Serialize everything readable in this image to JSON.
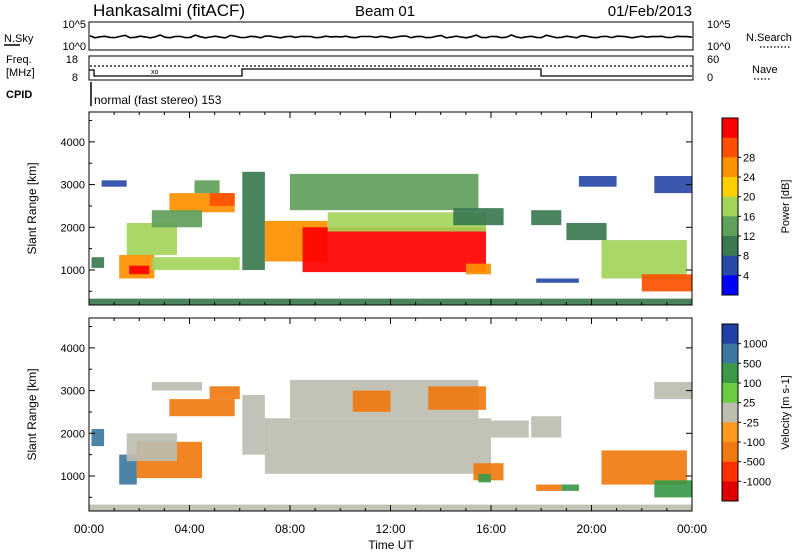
{
  "header": {
    "station": "Hankasalmi (fitACF)",
    "beam": "Beam 01",
    "date": "01/Feb/2013"
  },
  "noise_panel": {
    "left_label": "N.Sky",
    "right_label": "N.Search",
    "left_ticks": [
      "10^5",
      "10^0"
    ],
    "right_ticks": [
      "10^5",
      "10^0"
    ]
  },
  "freq_panel": {
    "left_label_1": "Freq.",
    "left_label_2": "[MHz]",
    "left_ticks": [
      "18",
      "8"
    ],
    "right_label": "Nave",
    "right_ticks": [
      "60",
      "0"
    ],
    "cpid_label": "CPID"
  },
  "cpid_panel": {
    "text": "normal (fast stereo) 153"
  },
  "chart_data": [
    {
      "type": "heatmap",
      "title": "Power",
      "ylabel": "Slant Range [km]",
      "xlabel": "Time UT",
      "x_tick_labels": [
        "00:00",
        "04:00",
        "08:00",
        "12:00",
        "16:00",
        "20:00",
        "00:00"
      ],
      "xlim_hours": [
        0,
        24
      ],
      "y_ticks": [
        1000,
        2000,
        3000,
        4000
      ],
      "ylim": [
        180,
        4700
      ],
      "colorbar": {
        "label": "Power [dB]",
        "ticks": [
          "4",
          "8",
          "12",
          "16",
          "20",
          "24",
          "28"
        ],
        "range": [
          0,
          30
        ]
      },
      "regions": [
        {
          "t0": 0.1,
          "t1": 0.6,
          "r0": 1050,
          "r1": 1300,
          "v": 9
        },
        {
          "t0": 1.2,
          "t1": 2.6,
          "r0": 800,
          "r1": 1350,
          "v": 22
        },
        {
          "t0": 1.6,
          "t1": 2.4,
          "r0": 900,
          "r1": 1100,
          "v": 27
        },
        {
          "t0": 1.5,
          "t1": 3.5,
          "r0": 1350,
          "r1": 2100,
          "v": 15
        },
        {
          "t0": 2.5,
          "t1": 6.0,
          "r0": 1000,
          "r1": 1300,
          "v": 14
        },
        {
          "t0": 3.2,
          "t1": 5.8,
          "r0": 2350,
          "r1": 2800,
          "v": 20
        },
        {
          "t0": 4.8,
          "t1": 5.8,
          "r0": 2500,
          "r1": 2800,
          "v": 25
        },
        {
          "t0": 2.5,
          "t1": 4.5,
          "r0": 2000,
          "r1": 2400,
          "v": 10
        },
        {
          "t0": 4.2,
          "t1": 5.2,
          "r0": 2800,
          "r1": 3100,
          "v": 13
        },
        {
          "t0": 0.5,
          "t1": 1.5,
          "r0": 2950,
          "r1": 3100,
          "v": 6
        },
        {
          "t0": 6.1,
          "t1": 7.0,
          "r0": 1000,
          "r1": 3300,
          "v": 8
        },
        {
          "t0": 7.0,
          "t1": 9.5,
          "r0": 1200,
          "r1": 2150,
          "v": 22
        },
        {
          "t0": 8.5,
          "t1": 15.8,
          "r0": 950,
          "r1": 2000,
          "v": 27
        },
        {
          "t0": 9.5,
          "t1": 15.8,
          "r0": 1900,
          "r1": 2350,
          "v": 15
        },
        {
          "t0": 8.0,
          "t1": 15.5,
          "r0": 2400,
          "r1": 3250,
          "v": 12
        },
        {
          "t0": 15.0,
          "t1": 16.0,
          "r0": 900,
          "r1": 1150,
          "v": 22
        },
        {
          "t0": 14.5,
          "t1": 16.5,
          "r0": 2050,
          "r1": 2450,
          "v": 8
        },
        {
          "t0": 17.6,
          "t1": 18.8,
          "r0": 2050,
          "r1": 2400,
          "v": 9
        },
        {
          "t0": 17.8,
          "t1": 19.5,
          "r0": 700,
          "r1": 800,
          "v": 6
        },
        {
          "t0": 19.0,
          "t1": 20.6,
          "r0": 1700,
          "r1": 2100,
          "v": 7
        },
        {
          "t0": 20.4,
          "t1": 23.8,
          "r0": 800,
          "r1": 1700,
          "v": 14
        },
        {
          "t0": 22.0,
          "t1": 24.0,
          "r0": 500,
          "r1": 900,
          "v": 24
        },
        {
          "t0": 19.5,
          "t1": 21.0,
          "r0": 2950,
          "r1": 3200,
          "v": 6
        },
        {
          "t0": 22.5,
          "t1": 24.0,
          "r0": 2800,
          "r1": 3200,
          "v": 5
        },
        {
          "t0": 0.0,
          "t1": 24.0,
          "r0": 180,
          "r1": 330,
          "v": 8
        }
      ]
    },
    {
      "type": "heatmap",
      "title": "Velocity",
      "ylabel": "Slant Range [km]",
      "xlabel": "Time UT",
      "x_tick_labels": [
        "00:00",
        "04:00",
        "08:00",
        "12:00",
        "16:00",
        "20:00",
        "00:00"
      ],
      "xlim_hours": [
        0,
        24
      ],
      "y_ticks": [
        1000,
        2000,
        3000,
        4000
      ],
      "ylim": [
        180,
        4700
      ],
      "colorbar": {
        "label": "Velocity [m s-1]",
        "ticks": [
          "1000",
          "500",
          "100",
          "25",
          "-25",
          "-100",
          "-500",
          "-1000"
        ]
      },
      "regions": [
        {
          "t0": 0.1,
          "t1": 0.6,
          "r0": 1700,
          "r1": 2100,
          "v": 600
        },
        {
          "t0": 1.2,
          "t1": 1.9,
          "r0": 800,
          "r1": 1500,
          "v": 400
        },
        {
          "t0": 1.9,
          "t1": 4.5,
          "r0": 950,
          "r1": 1800,
          "v": -150
        },
        {
          "t0": 1.5,
          "t1": 3.5,
          "r0": 1350,
          "r1": 2000,
          "v": 0
        },
        {
          "t0": 3.2,
          "t1": 5.8,
          "r0": 2400,
          "r1": 2800,
          "v": -200
        },
        {
          "t0": 4.8,
          "t1": 6.0,
          "r0": 2800,
          "r1": 3100,
          "v": -150
        },
        {
          "t0": 2.5,
          "t1": 4.5,
          "r0": 3000,
          "r1": 3200,
          "v": 0
        },
        {
          "t0": 6.1,
          "t1": 7.0,
          "r0": 1500,
          "r1": 2900,
          "v": 0
        },
        {
          "t0": 7.0,
          "t1": 16.0,
          "r0": 1050,
          "r1": 2350,
          "v": 0
        },
        {
          "t0": 8.0,
          "t1": 15.5,
          "r0": 2350,
          "r1": 3250,
          "v": 0
        },
        {
          "t0": 10.5,
          "t1": 12.0,
          "r0": 2500,
          "r1": 3000,
          "v": -200
        },
        {
          "t0": 13.5,
          "t1": 15.8,
          "r0": 2550,
          "r1": 3100,
          "v": -300
        },
        {
          "t0": 15.3,
          "t1": 16.5,
          "r0": 900,
          "r1": 1300,
          "v": -200
        },
        {
          "t0": 15.5,
          "t1": 16.0,
          "r0": 850,
          "r1": 1050,
          "v": 200
        },
        {
          "t0": 16.0,
          "t1": 17.5,
          "r0": 1900,
          "r1": 2300,
          "v": 0
        },
        {
          "t0": 17.6,
          "t1": 18.8,
          "r0": 1900,
          "r1": 2400,
          "v": 0
        },
        {
          "t0": 17.8,
          "t1": 18.8,
          "r0": 650,
          "r1": 800,
          "v": -200
        },
        {
          "t0": 18.8,
          "t1": 19.5,
          "r0": 650,
          "r1": 800,
          "v": 200
        },
        {
          "t0": 20.4,
          "t1": 23.8,
          "r0": 800,
          "r1": 1600,
          "v": -250
        },
        {
          "t0": 22.5,
          "t1": 24.0,
          "r0": 500,
          "r1": 900,
          "v": 300
        },
        {
          "t0": 22.5,
          "t1": 24.0,
          "r0": 2800,
          "r1": 3200,
          "v": 0
        },
        {
          "t0": 0.0,
          "t1": 24.0,
          "r0": 180,
          "r1": 330,
          "v": 0
        }
      ]
    }
  ],
  "colors": {
    "power": [
      "#0000ff",
      "#2a4aa8",
      "#3b7a50",
      "#5fa05a",
      "#a3d45a",
      "#ffd000",
      "#ff9000",
      "#ff5000",
      "#ff0000"
    ],
    "velocity": [
      "#2040a8",
      "#3e78a0",
      "#3a9a4a",
      "#6acc40",
      "#bdbdb0",
      "#ff9a20",
      "#f07a10",
      "#ff3000",
      "#e00000"
    ]
  }
}
